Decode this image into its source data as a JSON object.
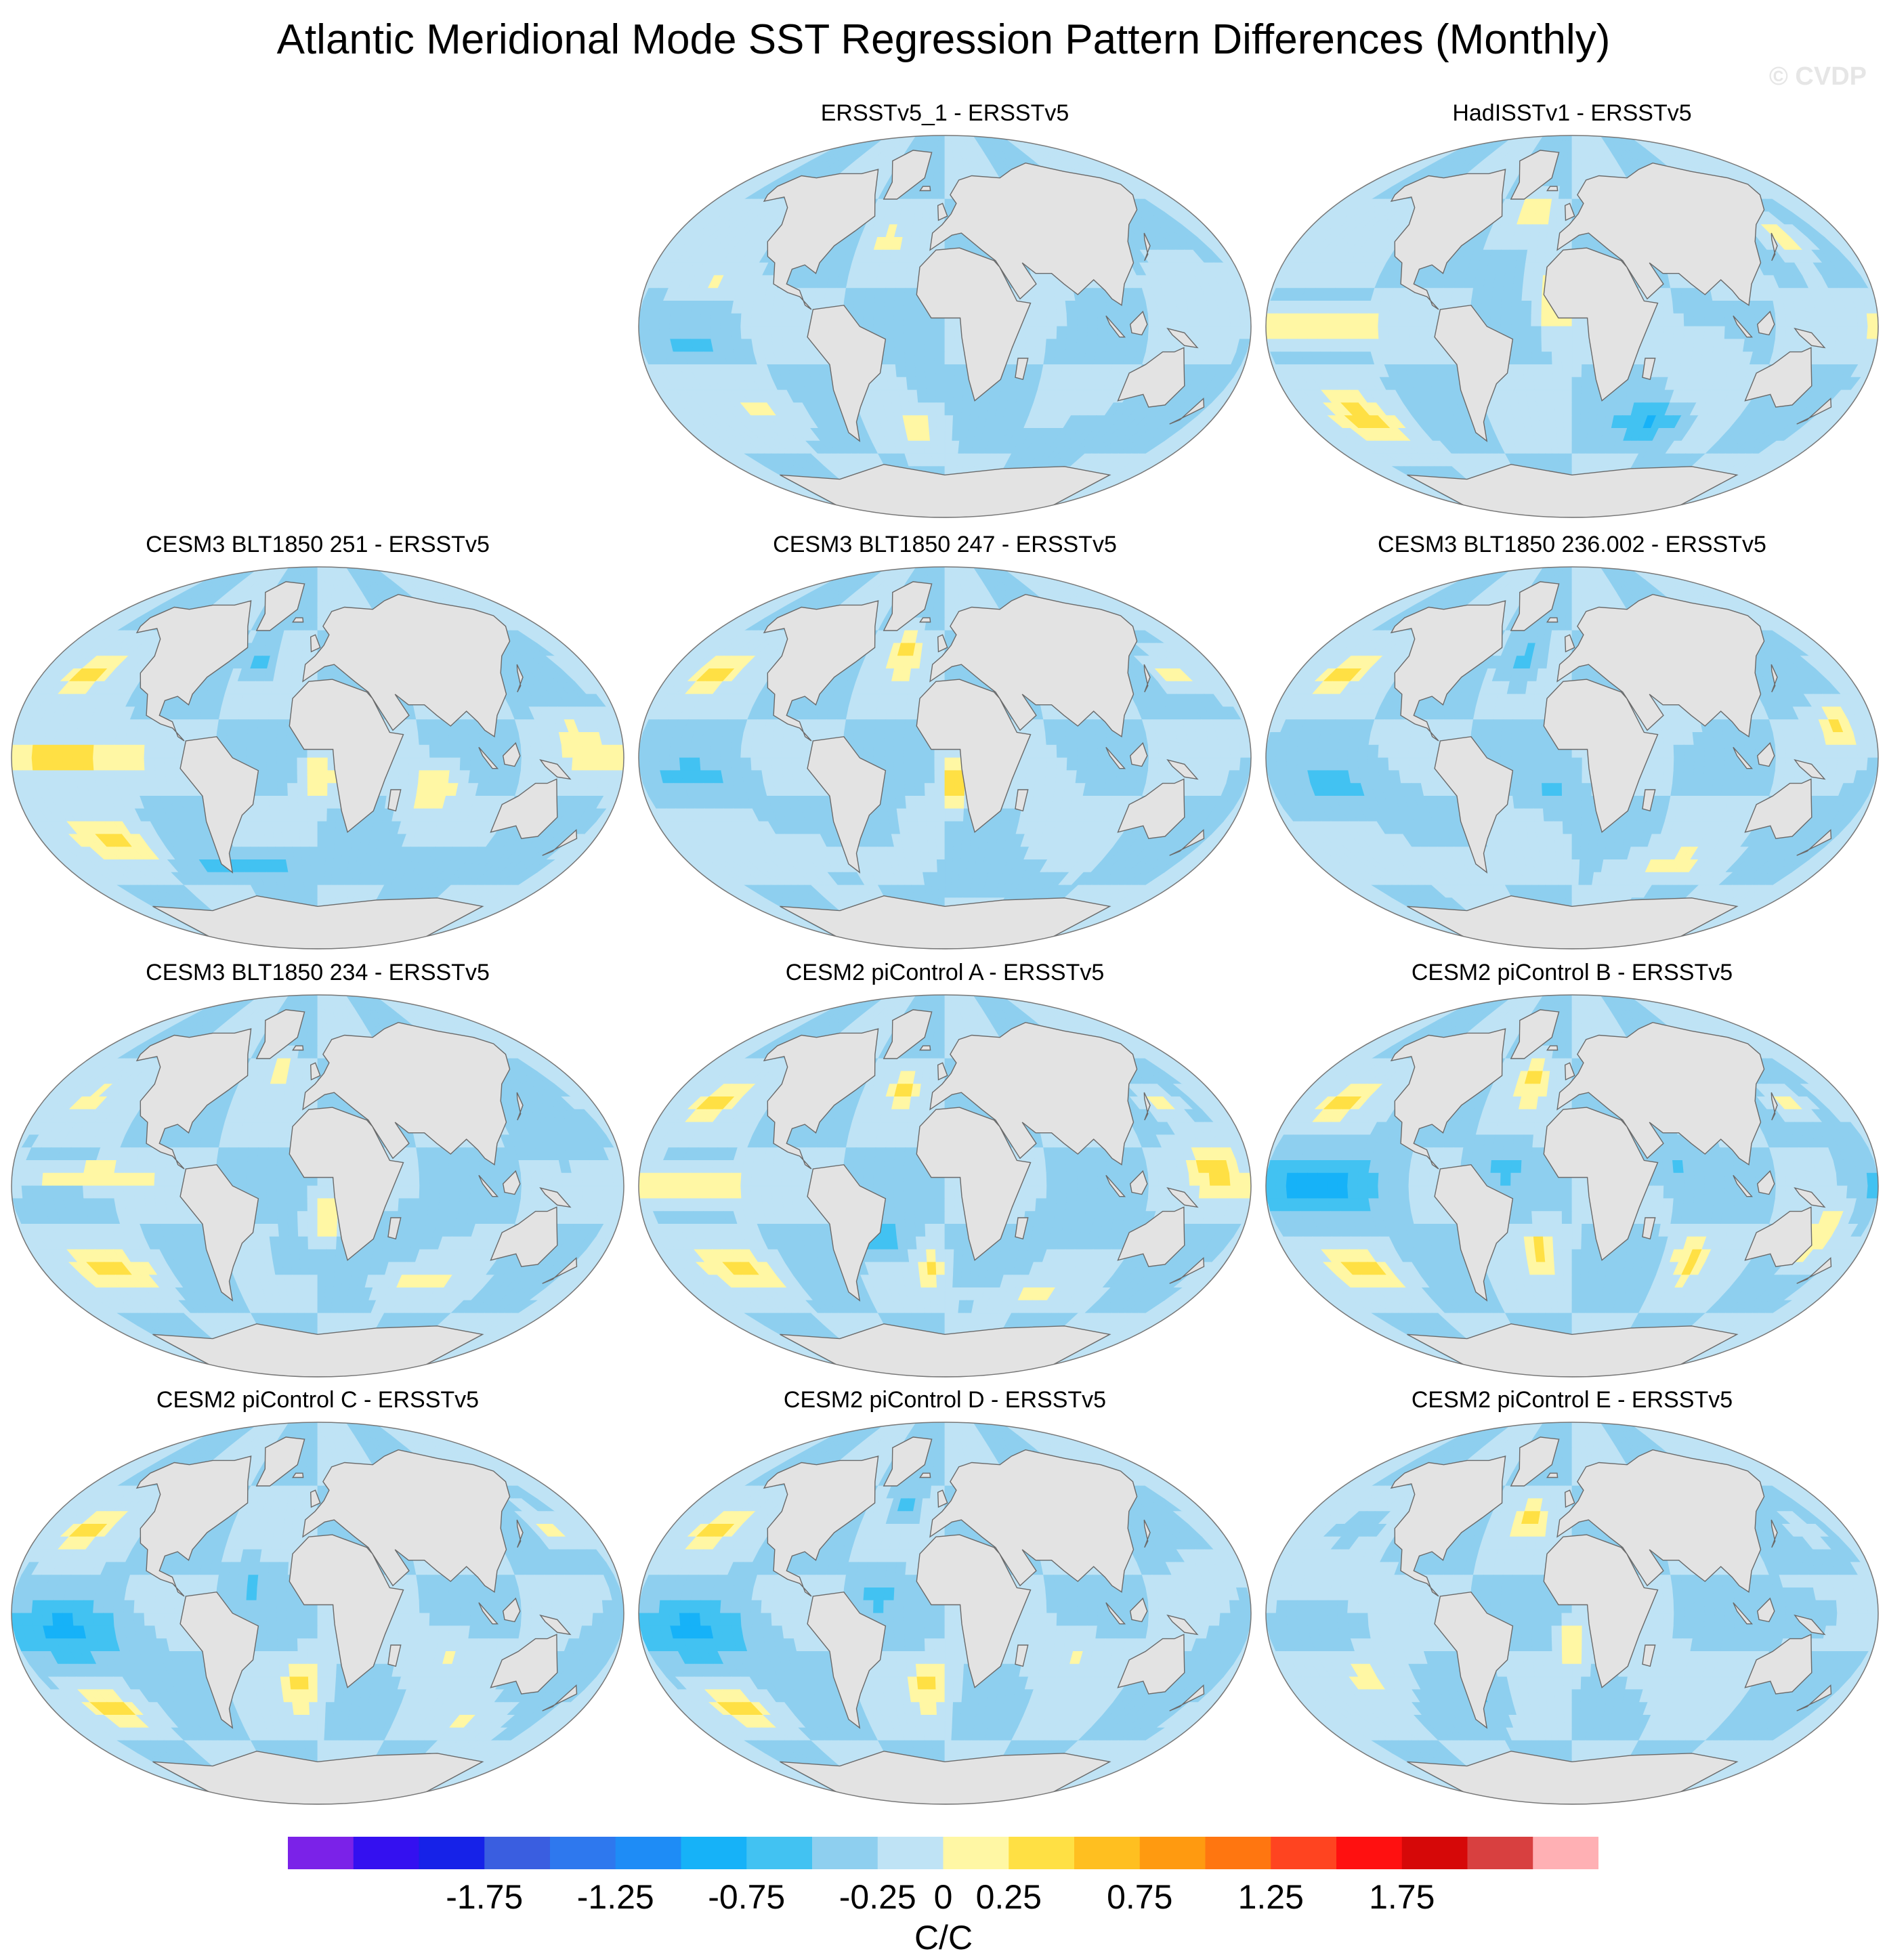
{
  "chart_data": {
    "type": "heatmap",
    "title": "Atlantic Meridional Mode SST Regression Pattern Differences (Monthly)",
    "watermark": "© CVDP",
    "units": "C/C",
    "colorbar": {
      "levels": [
        -2.0,
        -1.75,
        -1.5,
        -1.25,
        -1.0,
        -0.75,
        -0.5,
        -0.25,
        0,
        0.25,
        0.5,
        0.75,
        1.0,
        1.25,
        1.5,
        1.75,
        2.0
      ],
      "tick_labels": [
        "-1.75",
        "-1.25",
        "-0.75",
        "-0.25",
        "0",
        "0.25",
        "0.75",
        "1.25",
        "1.75"
      ],
      "tick_values": [
        -1.75,
        -1.25,
        -0.75,
        -0.25,
        0,
        0.25,
        0.75,
        1.25,
        1.75
      ],
      "colors": [
        "#7b22e8",
        "#3410f0",
        "#1622e8",
        "#3a5ee0",
        "#2e78ee",
        "#1e8cf6",
        "#16b2f8",
        "#42c2f2",
        "#8ecfef",
        "#bfe3f5",
        "#fff7a4",
        "#ffe044",
        "#ffbf20",
        "#ff9a10",
        "#ff7610",
        "#ff4420",
        "#ff1010",
        "#d60808",
        "#d84040",
        "#ffb0b4"
      ]
    },
    "panels": [
      {
        "title": "ERSSTv5_1 - ERSSTv5",
        "row": 0,
        "col": 1,
        "blobs": [
          [
            -140,
            20,
            20,
            8,
            0.25
          ],
          [
            -40,
            40,
            12,
            8,
            0.25
          ],
          [
            -120,
            -40,
            28,
            10,
            0.25
          ],
          [
            -20,
            -50,
            20,
            10,
            0.25
          ],
          [
            150,
            30,
            15,
            10,
            0.25
          ],
          [
            -150,
            -10,
            25,
            5,
            -0.25
          ],
          [
            -10,
            -30,
            12,
            8,
            -0.25
          ],
          [
            110,
            -50,
            30,
            8,
            -0.25
          ],
          [
            60,
            10,
            12,
            10,
            0.25
          ]
        ]
      },
      {
        "title": "HadISSTv1 - ERSSTv5",
        "row": 0,
        "col": 2,
        "blobs": [
          [
            -150,
            0,
            45,
            7,
            0.5
          ],
          [
            -30,
            55,
            12,
            8,
            0.5
          ],
          [
            -40,
            30,
            12,
            8,
            -0.25
          ],
          [
            -150,
            -45,
            25,
            12,
            0.5
          ],
          [
            80,
            -10,
            20,
            10,
            0.25
          ],
          [
            150,
            40,
            12,
            10,
            0.5
          ],
          [
            -10,
            10,
            12,
            15,
            0.5
          ],
          [
            60,
            -45,
            25,
            8,
            -0.5
          ],
          [
            100,
            20,
            12,
            10,
            0.25
          ]
        ]
      },
      {
        "title": "CESM3 BLT1850 251 - ERSSTv5",
        "row": 1,
        "col": 0,
        "blobs": [
          [
            -150,
            0,
            40,
            10,
            0.75
          ],
          [
            -160,
            40,
            15,
            8,
            0.5
          ],
          [
            -140,
            -40,
            25,
            10,
            0.5
          ],
          [
            0,
            -10,
            10,
            10,
            0.5
          ],
          [
            70,
            -15,
            15,
            12,
            0.5
          ],
          [
            155,
            10,
            12,
            12,
            0.25
          ],
          [
            -40,
            45,
            10,
            8,
            -0.5
          ],
          [
            -50,
            -50,
            40,
            6,
            -0.5
          ],
          [
            80,
            -50,
            40,
            6,
            -0.25
          ]
        ]
      },
      {
        "title": "CESM3 BLT1850 247 - ERSSTv5",
        "row": 1,
        "col": 1,
        "blobs": [
          [
            -160,
            40,
            15,
            8,
            0.5
          ],
          [
            -30,
            50,
            10,
            10,
            0.5
          ],
          [
            5,
            -12,
            8,
            10,
            0.75
          ],
          [
            65,
            -20,
            15,
            15,
            0.25
          ],
          [
            160,
            40,
            15,
            8,
            0.5
          ],
          [
            -150,
            -10,
            30,
            10,
            -0.25
          ],
          [
            -50,
            -35,
            20,
            10,
            -0.25
          ],
          [
            -100,
            -45,
            40,
            8,
            0.25
          ],
          [
            40,
            -55,
            40,
            6,
            -0.25
          ]
        ]
      },
      {
        "title": "CESM3 BLT1850 236.002 - ERSSTv5",
        "row": 1,
        "col": 2,
        "blobs": [
          [
            -160,
            40,
            15,
            8,
            0.5
          ],
          [
            -35,
            45,
            12,
            10,
            -0.5
          ],
          [
            -140,
            -15,
            40,
            12,
            -0.25
          ],
          [
            -10,
            -15,
            15,
            12,
            -0.25
          ],
          [
            160,
            15,
            12,
            10,
            0.5
          ],
          [
            70,
            -50,
            40,
            8,
            0.25
          ],
          [
            -100,
            -50,
            30,
            8,
            0.25
          ],
          [
            60,
            20,
            15,
            10,
            0.25
          ]
        ]
      },
      {
        "title": "CESM3 BLT1850 234 - ERSSTv5",
        "row": 2,
        "col": 0,
        "blobs": [
          [
            -140,
            5,
            40,
            6,
            0.5
          ],
          [
            -160,
            40,
            15,
            8,
            0.25
          ],
          [
            -140,
            -40,
            30,
            10,
            0.5
          ],
          [
            5,
            -15,
            8,
            10,
            0.5
          ],
          [
            -30,
            55,
            10,
            8,
            0.5
          ],
          [
            150,
            20,
            15,
            12,
            -0.25
          ],
          [
            60,
            -20,
            20,
            10,
            -0.25
          ],
          [
            70,
            -45,
            35,
            8,
            0.25
          ],
          [
            -20,
            -35,
            12,
            8,
            -0.25
          ]
        ]
      },
      {
        "title": "CESM2 piControl A - ERSSTv5",
        "row": 2,
        "col": 1,
        "blobs": [
          [
            -150,
            0,
            40,
            8,
            0.5
          ],
          [
            -160,
            40,
            15,
            8,
            0.5
          ],
          [
            -140,
            -40,
            25,
            10,
            0.5
          ],
          [
            -30,
            45,
            10,
            8,
            0.5
          ],
          [
            160,
            10,
            15,
            12,
            0.5
          ],
          [
            -40,
            -25,
            15,
            10,
            -0.5
          ],
          [
            -10,
            -40,
            10,
            8,
            0.5
          ],
          [
            80,
            -20,
            25,
            10,
            -0.25
          ],
          [
            60,
            -50,
            40,
            6,
            0.25
          ],
          [
            150,
            40,
            12,
            8,
            0.5
          ]
        ]
      },
      {
        "title": "CESM2 piControl B - ERSSTv5",
        "row": 2,
        "col": 2,
        "blobs": [
          [
            -150,
            0,
            45,
            15,
            -0.5
          ],
          [
            -160,
            40,
            15,
            8,
            0.5
          ],
          [
            -145,
            -40,
            25,
            10,
            0.5
          ],
          [
            -30,
            50,
            10,
            10,
            0.5
          ],
          [
            155,
            -25,
            12,
            15,
            0.5
          ],
          [
            -20,
            -30,
            12,
            10,
            0.5
          ],
          [
            80,
            -35,
            12,
            10,
            0.5
          ],
          [
            150,
            40,
            12,
            8,
            0.5
          ],
          [
            -40,
            10,
            12,
            10,
            -0.25
          ],
          [
            60,
            10,
            20,
            10,
            -0.25
          ]
        ]
      },
      {
        "title": "CESM2 piControl C - ERSSTv5",
        "row": 3,
        "col": 0,
        "blobs": [
          [
            -150,
            -10,
            40,
            15,
            -0.5
          ],
          [
            -160,
            40,
            15,
            8,
            0.5
          ],
          [
            -150,
            -45,
            20,
            8,
            0.5
          ],
          [
            -10,
            -35,
            15,
            12,
            0.5
          ],
          [
            160,
            40,
            10,
            8,
            0.5
          ],
          [
            -40,
            15,
            12,
            10,
            -0.25
          ],
          [
            80,
            -20,
            25,
            12,
            0.25
          ],
          [
            120,
            -50,
            30,
            8,
            0.25
          ]
        ]
      },
      {
        "title": "CESM2 piControl D - ERSSTv5",
        "row": 3,
        "col": 1,
        "blobs": [
          [
            -150,
            -10,
            40,
            15,
            -0.5
          ],
          [
            -160,
            40,
            15,
            8,
            0.5
          ],
          [
            -150,
            -45,
            20,
            8,
            0.5
          ],
          [
            -10,
            -35,
            15,
            12,
            0.5
          ],
          [
            160,
            20,
            12,
            10,
            0.25
          ],
          [
            -30,
            50,
            10,
            8,
            -0.5
          ],
          [
            80,
            -20,
            25,
            12,
            0.25
          ],
          [
            -40,
            10,
            12,
            10,
            -0.25
          ]
        ]
      },
      {
        "title": "CESM2 piControl E - ERSSTv5",
        "row": 3,
        "col": 2,
        "blobs": [
          [
            -30,
            45,
            10,
            10,
            0.5
          ],
          [
            -140,
            10,
            40,
            6,
            0.25
          ],
          [
            -130,
            -30,
            25,
            10,
            0.25
          ],
          [
            0,
            -15,
            8,
            10,
            0.5
          ],
          [
            60,
            -30,
            25,
            10,
            0.25
          ],
          [
            140,
            0,
            20,
            10,
            -0.25
          ],
          [
            -60,
            -40,
            20,
            10,
            -0.25
          ],
          [
            160,
            40,
            10,
            8,
            0.25
          ],
          [
            -150,
            40,
            15,
            8,
            -0.25
          ]
        ]
      }
    ]
  }
}
